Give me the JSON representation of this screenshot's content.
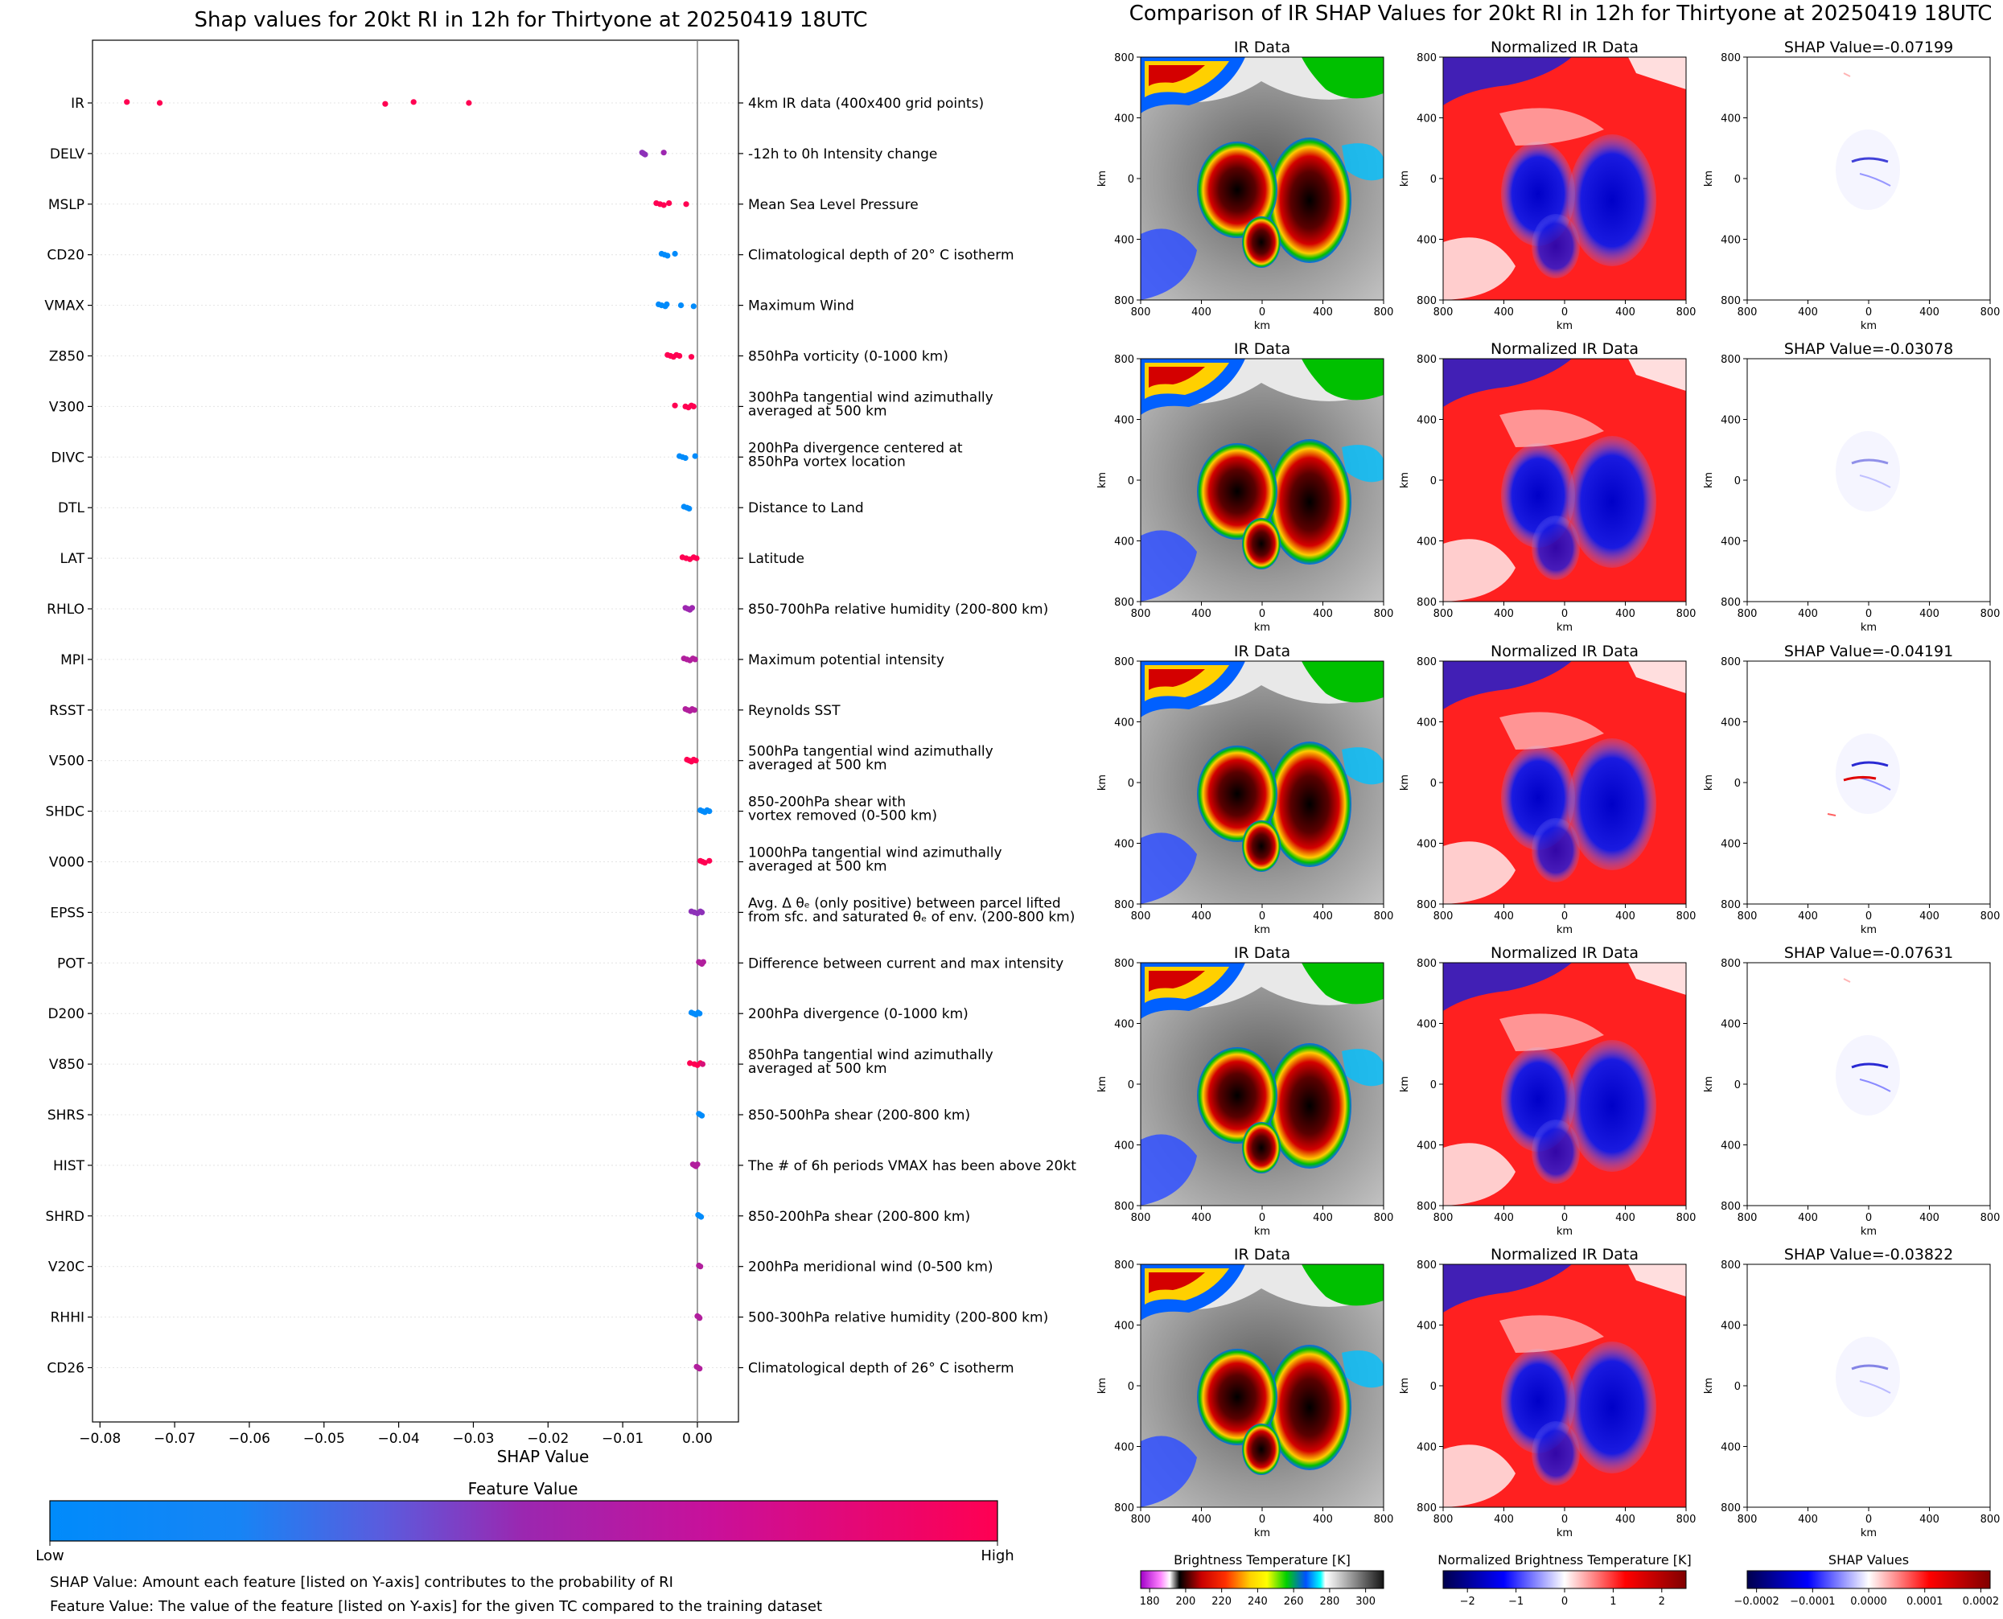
{
  "left_title": "Shap values for 20kt RI in 12h for Thirtyone at 20250419 18UTC",
  "right_title": "Comparison of IR SHAP Values for 20kt RI in 12h for Thirtyone at 20250419 18UTC",
  "colors": {
    "low": "#008bfb",
    "high": "#ff0052",
    "mid": "#9d27b0"
  },
  "chart_data": [
    {
      "type": "scatter",
      "title": "Shap values for 20kt RI in 12h for Thirtyone at 20250419 18UTC",
      "xlabel": "SHAP Value",
      "ylabel": "",
      "xlim": [
        -0.081,
        0.0055
      ],
      "xticks": [
        -0.08,
        -0.07,
        -0.06,
        -0.05,
        -0.04,
        -0.03,
        -0.02,
        -0.01,
        0.0
      ],
      "xtick_labels": [
        "−0.08",
        "−0.07",
        "−0.06",
        "−0.05",
        "−0.04",
        "−0.03",
        "−0.02",
        "−0.01",
        "0.00"
      ],
      "features": [
        {
          "name": "IR",
          "desc": [
            "4km IR data (400x400 grid points)"
          ],
          "points": [
            [
              -0.0764,
              1
            ],
            [
              -0.072,
              1
            ],
            [
              -0.0418,
              1
            ],
            [
              -0.038,
              1
            ],
            [
              -0.0306,
              1
            ]
          ]
        },
        {
          "name": "DELV",
          "desc": [
            "-12h to 0h Intensity change"
          ],
          "points": [
            [
              -0.0074,
              0.45
            ],
            [
              -0.0072,
              0.45
            ],
            [
              -0.007,
              0.45
            ],
            [
              -0.0045,
              0.5
            ]
          ]
        },
        {
          "name": "MSLP",
          "desc": [
            "Mean Sea Level Pressure"
          ],
          "points": [
            [
              -0.0055,
              1
            ],
            [
              -0.005,
              1
            ],
            [
              -0.0045,
              1
            ],
            [
              -0.0038,
              1
            ],
            [
              -0.0015,
              1
            ]
          ]
        },
        {
          "name": "CD20",
          "desc": [
            "Climatological depth of 20° C isotherm"
          ],
          "points": [
            [
              -0.0048,
              0
            ],
            [
              -0.0044,
              0
            ],
            [
              -0.004,
              0
            ],
            [
              -0.003,
              0
            ]
          ]
        },
        {
          "name": "VMAX",
          "desc": [
            "Maximum Wind"
          ],
          "points": [
            [
              -0.0052,
              0
            ],
            [
              -0.0048,
              0
            ],
            [
              -0.0043,
              0
            ],
            [
              -0.0041,
              0
            ],
            [
              -0.0022,
              0
            ],
            [
              -0.0005,
              0
            ]
          ]
        },
        {
          "name": "Z850",
          "desc": [
            "850hPa vorticity (0-1000 km)"
          ],
          "points": [
            [
              -0.004,
              1
            ],
            [
              -0.0036,
              1
            ],
            [
              -0.0032,
              1
            ],
            [
              -0.0028,
              1
            ],
            [
              -0.0024,
              1
            ],
            [
              -0.0008,
              1
            ]
          ]
        },
        {
          "name": "V300",
          "desc": [
            "300hPa tangential wind azimuthally",
            "averaged at 500 km"
          ],
          "points": [
            [
              -0.003,
              1
            ],
            [
              -0.0016,
              1
            ],
            [
              -0.0012,
              1
            ],
            [
              -0.0008,
              1
            ],
            [
              -0.0005,
              1
            ]
          ]
        },
        {
          "name": "DIVC",
          "desc": [
            "200hPa divergence centered at",
            "850hPa vortex location"
          ],
          "points": [
            [
              -0.0024,
              0
            ],
            [
              -0.002,
              0
            ],
            [
              -0.0016,
              0
            ],
            [
              -0.0003,
              0
            ]
          ]
        },
        {
          "name": "DTL",
          "desc": [
            "Distance to Land"
          ],
          "points": [
            [
              -0.0018,
              0
            ],
            [
              -0.0014,
              0
            ],
            [
              -0.0011,
              0
            ]
          ]
        },
        {
          "name": "LAT",
          "desc": [
            "Latitude"
          ],
          "points": [
            [
              -0.002,
              1
            ],
            [
              -0.0015,
              1
            ],
            [
              -0.001,
              1
            ],
            [
              -0.0005,
              1
            ],
            [
              -0.0001,
              1
            ]
          ]
        },
        {
          "name": "RHLO",
          "desc": [
            "850-700hPa relative humidity (200-800 km)"
          ],
          "points": [
            [
              -0.0016,
              0.5
            ],
            [
              -0.0013,
              0.5
            ],
            [
              -0.001,
              0.5
            ],
            [
              -0.0007,
              0.5
            ]
          ]
        },
        {
          "name": "MPI",
          "desc": [
            "Maximum potential intensity"
          ],
          "points": [
            [
              -0.0018,
              0.6
            ],
            [
              -0.0014,
              0.6
            ],
            [
              -0.001,
              0.6
            ],
            [
              -0.0006,
              0.6
            ],
            [
              -0.0003,
              0.6
            ]
          ]
        },
        {
          "name": "RSST",
          "desc": [
            "Reynolds SST"
          ],
          "points": [
            [
              -0.0016,
              0.6
            ],
            [
              -0.0013,
              0.6
            ],
            [
              -0.001,
              0.6
            ],
            [
              -0.0007,
              0.6
            ],
            [
              -0.0004,
              0.6
            ]
          ]
        },
        {
          "name": "V500",
          "desc": [
            "500hPa tangential wind azimuthally",
            "averaged at 500 km"
          ],
          "points": [
            [
              -0.0014,
              1
            ],
            [
              -0.0011,
              1
            ],
            [
              -0.0008,
              1
            ],
            [
              -0.0005,
              1
            ],
            [
              -0.0002,
              1
            ]
          ]
        },
        {
          "name": "SHDC",
          "desc": [
            "850-200hPa shear with",
            "vortex removed (0-500 km)"
          ],
          "points": [
            [
              0.0004,
              0
            ],
            [
              0.0007,
              0
            ],
            [
              0.001,
              0
            ],
            [
              0.0013,
              0
            ],
            [
              0.0016,
              0
            ]
          ]
        },
        {
          "name": "V000",
          "desc": [
            "1000hPa tangential wind azimuthally",
            "averaged at 500 km"
          ],
          "points": [
            [
              0.0004,
              1
            ],
            [
              0.0007,
              1
            ],
            [
              0.001,
              1
            ],
            [
              0.0016,
              1
            ]
          ]
        },
        {
          "name": "EPSS",
          "desc": [
            "Avg. Δ θₑ (only positive) between parcel lifted",
            "from sfc. and saturated θₑ of env. (200-800 km)"
          ],
          "points": [
            [
              -0.0008,
              0.45
            ],
            [
              -0.0004,
              0.45
            ],
            [
              0.0,
              0.45
            ],
            [
              0.0004,
              0.45
            ],
            [
              0.0006,
              0.45
            ]
          ]
        },
        {
          "name": "POT",
          "desc": [
            "Difference between current and max intensity"
          ],
          "points": [
            [
              0.0002,
              0.6
            ],
            [
              0.0004,
              0.6
            ],
            [
              0.0006,
              0.6
            ],
            [
              0.0008,
              0.6
            ]
          ]
        },
        {
          "name": "D200",
          "desc": [
            "200hPa divergence (0-1000 km)"
          ],
          "points": [
            [
              -0.0008,
              0
            ],
            [
              -0.0005,
              0
            ],
            [
              -0.0002,
              0
            ],
            [
              0.0001,
              0
            ],
            [
              0.0003,
              0
            ]
          ]
        },
        {
          "name": "V850",
          "desc": [
            "850hPa tangential wind azimuthally",
            "averaged at 500 km"
          ],
          "points": [
            [
              -0.001,
              1
            ],
            [
              -0.0004,
              1
            ],
            [
              0.0,
              1
            ],
            [
              0.0004,
              1
            ],
            [
              0.0007,
              0.8
            ]
          ]
        },
        {
          "name": "SHRS",
          "desc": [
            "850-500hPa shear (200-800 km)"
          ],
          "points": [
            [
              0.0002,
              0
            ],
            [
              0.0004,
              0
            ],
            [
              0.0006,
              0
            ]
          ]
        },
        {
          "name": "HIST",
          "desc": [
            "The # of 6h periods VMAX has been above 20kt"
          ],
          "points": [
            [
              -0.0006,
              0.6
            ],
            [
              -0.0004,
              0.6
            ],
            [
              -0.0002,
              0.6
            ],
            [
              0.0,
              0.6
            ]
          ]
        },
        {
          "name": "SHRD",
          "desc": [
            "850-200hPa shear (200-800 km)"
          ],
          "points": [
            [
              0.0001,
              0
            ],
            [
              0.0003,
              0
            ],
            [
              0.0005,
              0
            ]
          ]
        },
        {
          "name": "V20C",
          "desc": [
            "200hPa meridional wind (0-500 km)"
          ],
          "points": [
            [
              0.0002,
              0.6
            ],
            [
              0.0004,
              0.6
            ]
          ]
        },
        {
          "name": "RHHI",
          "desc": [
            "500-300hPa relative humidity (200-800 km)"
          ],
          "points": [
            [
              0.0,
              0.6
            ],
            [
              0.0002,
              0.6
            ],
            [
              0.0003,
              0.6
            ]
          ]
        },
        {
          "name": "CD26",
          "desc": [
            "Climatological depth of 26° C isotherm"
          ],
          "points": [
            [
              -0.0001,
              0.6
            ],
            [
              0.0001,
              0.6
            ],
            [
              0.0003,
              0.6
            ]
          ]
        }
      ],
      "colorbar": {
        "title": "Feature Value",
        "low_label": "Low",
        "high_label": "High"
      }
    },
    {
      "type": "heatmap",
      "title": "Comparison of IR SHAP Values for 20kt RI in 12h for Thirtyone at 20250419 18UTC",
      "panel_titles": [
        "IR Data",
        "Normalized IR Data"
      ],
      "shap_titles": [
        "SHAP Value=-0.07199",
        "SHAP Value=-0.03078",
        "SHAP Value=-0.04191",
        "SHAP Value=-0.07631",
        "SHAP Value=-0.03822"
      ],
      "axis_label": "km",
      "xlim": [
        -800,
        800
      ],
      "ylim": [
        -800,
        800
      ],
      "tick_labels": [
        "800",
        "400",
        "0",
        "400",
        "800"
      ],
      "colorbars": [
        {
          "title": "Brightness Temperature [K]",
          "ticks": [
            "180",
            "200",
            "220",
            "240",
            "260",
            "280",
            "300"
          ]
        },
        {
          "title": "Normalized Brightness Temperature [K]",
          "ticks": [
            "−2",
            "−1",
            "0",
            "1",
            "2"
          ]
        },
        {
          "title": "SHAP Values",
          "ticks": [
            "−0.0002",
            "−0.0001",
            "0.0000",
            "0.0001",
            "0.0002"
          ]
        }
      ]
    }
  ],
  "notes": [
    "SHAP Value: Amount each feature [listed on Y-axis] contributes to the probability of RI",
    "Feature Value: The value of the feature [listed on Y-axis] for the given TC compared to the training dataset"
  ]
}
